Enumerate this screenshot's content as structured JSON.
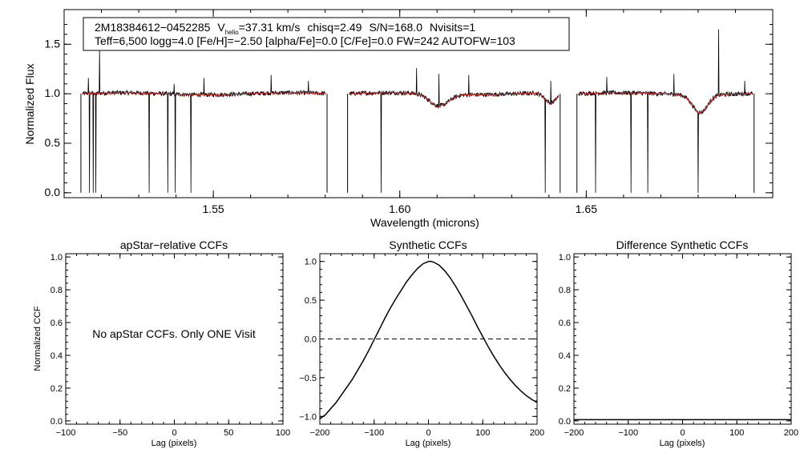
{
  "header": {
    "star_id": "2M18384612−0452285",
    "v_label": "V",
    "v_sub": "helio",
    "v_value": "=37.31 km/s",
    "chisq": "chisq=2.49",
    "sn": "S/N=168.0",
    "nvisits": "Nvisits=1",
    "params_line": "Teff=6,500 logg=4.0 [Fe/H]=−2.50 [alpha/Fe]=0.0 [C/Fe]=0.0 FW=242 AUTOFW=103"
  },
  "colors": {
    "data": "#000000",
    "model": "#d62020"
  },
  "chart_data": [
    {
      "type": "line",
      "id": "spectrum",
      "title": "",
      "xlabel": "Wavelength (microns)",
      "ylabel": "Normalized Flux",
      "xlim": [
        1.51,
        1.7
      ],
      "ylim": [
        -0.05,
        1.85
      ],
      "xticks": [
        1.55,
        1.6,
        1.65
      ],
      "xtick_labels": [
        "1.55",
        "1.60",
        "1.65"
      ],
      "yticks": [
        0.0,
        0.5,
        1.0,
        1.5
      ],
      "ytick_labels": [
        "0.0",
        "0.5",
        "1.0",
        "1.5"
      ],
      "chips": [
        [
          1.5145,
          1.5805
        ],
        [
          1.586,
          1.643
        ],
        [
          1.6475,
          1.695
        ]
      ],
      "continuum": 1.0,
      "emission_spikes": [
        [
          1.5195,
          1.46
        ],
        [
          1.5165,
          1.16
        ],
        [
          1.5395,
          1.1
        ],
        [
          1.5475,
          1.16
        ],
        [
          1.5655,
          1.19
        ],
        [
          1.5755,
          1.13
        ],
        [
          1.6045,
          1.26
        ],
        [
          1.6105,
          1.2
        ],
        [
          1.6185,
          1.19
        ],
        [
          1.6405,
          1.13
        ],
        [
          1.6555,
          1.17
        ],
        [
          1.6735,
          1.2
        ],
        [
          1.6855,
          1.65
        ],
        [
          1.6925,
          1.13
        ]
      ],
      "dropouts": [
        1.5168,
        1.5178,
        1.5185,
        1.5328,
        1.5378,
        1.5398,
        1.544,
        1.595,
        1.639,
        1.6525,
        1.662,
        1.6665,
        1.68
      ],
      "model_features": [
        [
          1.6105,
          0.12,
          0.0025
        ],
        [
          1.6405,
          0.1,
          0.0015
        ],
        [
          1.6805,
          0.18,
          0.002
        ]
      ],
      "series": [
        {
          "name": "observed",
          "color": "#000000"
        },
        {
          "name": "model",
          "color": "#d62020"
        }
      ]
    },
    {
      "type": "line",
      "id": "apstar_ccf",
      "title": "apStar−relative CCFs",
      "xlabel": "Lag (pixels)",
      "ylabel": "Normalized CCF",
      "xlim": [
        -100,
        100
      ],
      "ylim": [
        -0.02,
        1.02
      ],
      "xticks": [
        -100,
        -50,
        0,
        50,
        100
      ],
      "xtick_labels": [
        "−100",
        "−50",
        "0",
        "50",
        "100"
      ],
      "yticks": [
        0.0,
        0.2,
        0.4,
        0.6,
        0.8,
        1.0
      ],
      "ytick_labels": [
        "0.0",
        "0.2",
        "0.4",
        "0.6",
        "0.8",
        "1.0"
      ],
      "annotation": "No apStar CCFs.  Only ONE Visit",
      "series": []
    },
    {
      "type": "line",
      "id": "synthetic_ccf",
      "title": "Synthetic CCFs",
      "xlabel": "Lag (pixels)",
      "ylabel": "",
      "xlim": [
        -200,
        200
      ],
      "ylim": [
        -1.1,
        1.1
      ],
      "xticks": [
        -200,
        -100,
        0,
        100,
        200
      ],
      "xtick_labels": [
        "−200",
        "−100",
        "0",
        "100",
        "200"
      ],
      "yticks": [
        -1.0,
        -0.5,
        0.0,
        0.5,
        1.0
      ],
      "ytick_labels": [
        "−1.0",
        "−0.5",
        "0.0",
        "0.5",
        "1.0"
      ],
      "zero_line": 0.0,
      "series": [
        {
          "name": "ccf",
          "x": [
            -200,
            -190,
            -180,
            -170,
            -160,
            -150,
            -140,
            -130,
            -120,
            -110,
            -100,
            -90,
            -80,
            -70,
            -60,
            -50,
            -40,
            -30,
            -20,
            -10,
            0,
            5,
            10,
            20,
            30,
            40,
            50,
            60,
            70,
            80,
            90,
            100,
            110,
            120,
            130,
            140,
            150,
            160,
            170,
            180,
            190,
            200
          ],
          "y": [
            -1.03,
            -0.98,
            -0.9,
            -0.82,
            -0.72,
            -0.62,
            -0.52,
            -0.4,
            -0.28,
            -0.15,
            -0.01,
            0.13,
            0.27,
            0.4,
            0.52,
            0.63,
            0.74,
            0.83,
            0.91,
            0.97,
            1.0,
            1.0,
            0.99,
            0.95,
            0.88,
            0.79,
            0.68,
            0.56,
            0.43,
            0.3,
            0.16,
            0.03,
            -0.1,
            -0.22,
            -0.33,
            -0.43,
            -0.52,
            -0.6,
            -0.67,
            -0.73,
            -0.78,
            -0.82
          ]
        }
      ]
    },
    {
      "type": "line",
      "id": "diff_ccf",
      "title": "Difference Synthetic CCFs",
      "xlabel": "Lag (pixels)",
      "ylabel": "",
      "xlim": [
        -200,
        200
      ],
      "ylim": [
        -0.02,
        1.02
      ],
      "xticks": [
        -200,
        -100,
        0,
        100,
        200
      ],
      "xtick_labels": [
        "−200",
        "−100",
        "0",
        "100",
        "200"
      ],
      "yticks": [
        0.0,
        0.2,
        0.4,
        0.6,
        0.8,
        1.0
      ],
      "ytick_labels": [
        "0.0",
        "0.2",
        "0.4",
        "0.6",
        "0.8",
        "1.0"
      ],
      "series": [
        {
          "name": "difference",
          "x": [
            -200,
            200
          ],
          "y": [
            0.0,
            0.0
          ]
        }
      ]
    }
  ]
}
